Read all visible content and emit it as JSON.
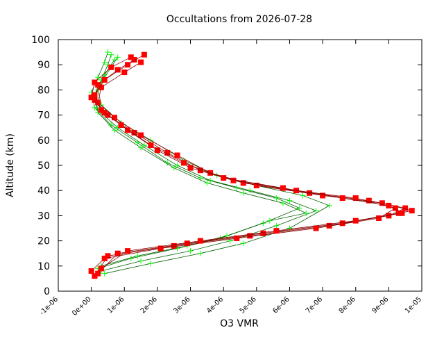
{
  "chart_data": {
    "type": "line",
    "title": "Occultations from 2026-07-28",
    "xlabel": "O3 VMR",
    "ylabel": "Altitude (km)",
    "xlim": [
      -1e-06,
      1e-05
    ],
    "ylim": [
      0,
      100
    ],
    "x_ticks": [
      {
        "value": -1e-06,
        "label": "-1e-06"
      },
      {
        "value": 0,
        "label": "0e+00"
      },
      {
        "value": 1e-06,
        "label": "1e-06"
      },
      {
        "value": 2e-06,
        "label": "2e-06"
      },
      {
        "value": 3e-06,
        "label": "3e-06"
      },
      {
        "value": 4e-06,
        "label": "4e-06"
      },
      {
        "value": 5e-06,
        "label": "5e-06"
      },
      {
        "value": 6e-06,
        "label": "6e-06"
      },
      {
        "value": 7e-06,
        "label": "7e-06"
      },
      {
        "value": 8e-06,
        "label": "8e-06"
      },
      {
        "value": 9e-06,
        "label": "9e-06"
      },
      {
        "value": 1e-05,
        "label": "1e-05"
      }
    ],
    "y_ticks": [
      {
        "value": 0,
        "label": "0"
      },
      {
        "value": 10,
        "label": "10"
      },
      {
        "value": 20,
        "label": "20"
      },
      {
        "value": 30,
        "label": "30"
      },
      {
        "value": 40,
        "label": "40"
      },
      {
        "value": 50,
        "label": "50"
      },
      {
        "value": 60,
        "label": "60"
      },
      {
        "value": 70,
        "label": "70"
      },
      {
        "value": 80,
        "label": "80"
      },
      {
        "value": 90,
        "label": "90"
      },
      {
        "value": 100,
        "label": "100"
      }
    ],
    "grid": false,
    "legend": "none",
    "series": [
      {
        "marker": "plus",
        "color": "#00ff00",
        "line_color": "#006400",
        "profiles": [
          {
            "points": [
              [
                3e-07,
                8
              ],
              [
                1.5e-06,
                12
              ],
              [
                3e-06,
                16
              ],
              [
                4.2e-06,
                20
              ],
              [
                5.6e-06,
                26
              ],
              [
                6.8e-06,
                32
              ],
              [
                6e-06,
                36
              ],
              [
                4.8e-06,
                40
              ],
              [
                3.6e-06,
                44
              ],
              [
                2.6e-06,
                50
              ],
              [
                1.6e-06,
                58
              ],
              [
                8e-07,
                65
              ],
              [
                2e-07,
                72
              ],
              [
                1e-07,
                78
              ],
              [
                3e-07,
                84
              ],
              [
                5e-07,
                90
              ],
              [
                6e-07,
                94
              ]
            ]
          },
          {
            "points": [
              [
                2e-07,
                9
              ],
              [
                1.2e-06,
                13
              ],
              [
                2.6e-06,
                17
              ],
              [
                3.9e-06,
                21
              ],
              [
                5.2e-06,
                27
              ],
              [
                6.3e-06,
                33
              ],
              [
                5.6e-06,
                37
              ],
              [
                4.4e-06,
                41
              ],
              [
                3.3e-06,
                45
              ],
              [
                2.3e-06,
                51
              ],
              [
                1.4e-06,
                59
              ],
              [
                6e-07,
                66
              ],
              [
                1e-07,
                73
              ],
              [
                0.0,
                79
              ],
              [
                2e-07,
                85
              ],
              [
                4e-07,
                91
              ],
              [
                5e-07,
                95
              ]
            ]
          },
          {
            "points": [
              [
                4e-07,
                7
              ],
              [
                1.8e-06,
                11
              ],
              [
                3.3e-06,
                15
              ],
              [
                4.6e-06,
                19
              ],
              [
                6e-06,
                25
              ],
              [
                7.2e-06,
                34
              ],
              [
                6.4e-06,
                38
              ],
              [
                5e-06,
                42
              ],
              [
                3.8e-06,
                46
              ],
              [
                2.8e-06,
                52
              ],
              [
                1.8e-06,
                60
              ],
              [
                9e-07,
                67
              ],
              [
                3e-07,
                74
              ],
              [
                2e-07,
                80
              ],
              [
                4e-07,
                86
              ],
              [
                7e-07,
                92
              ]
            ]
          },
          {
            "points": [
              [
                3e-07,
                10
              ],
              [
                1.4e-06,
                14
              ],
              [
                2.9e-06,
                18
              ],
              [
                4.1e-06,
                22
              ],
              [
                5.4e-06,
                28
              ],
              [
                6.5e-06,
                31
              ],
              [
                5.8e-06,
                35
              ],
              [
                4.6e-06,
                39
              ],
              [
                3.5e-06,
                43
              ],
              [
                2.5e-06,
                49
              ],
              [
                1.5e-06,
                57
              ],
              [
                7e-07,
                64
              ],
              [
                2e-07,
                71
              ],
              [
                1e-07,
                77
              ],
              [
                3e-07,
                83
              ],
              [
                6e-07,
                89
              ],
              [
                8e-07,
                93
              ]
            ]
          }
        ]
      },
      {
        "marker": "square",
        "color": "#ff0000",
        "line_color": "#8b0000",
        "profiles": [
          {
            "points": [
              [
                1e-07,
                6
              ],
              [
                5e-07,
                14
              ],
              [
                2.5e-06,
                18
              ],
              [
                4.8e-06,
                22
              ],
              [
                7.2e-06,
                26
              ],
              [
                9e-06,
                30
              ],
              [
                9.5e-06,
                33
              ],
              [
                8.4e-06,
                36
              ],
              [
                6.6e-06,
                39
              ],
              [
                4.6e-06,
                43
              ],
              [
                3.3e-06,
                48
              ],
              [
                2.3e-06,
                55
              ],
              [
                1.3e-06,
                63
              ],
              [
                5e-07,
                70
              ],
              [
                1e-07,
                76
              ],
              [
                2e-07,
                82
              ],
              [
                8e-07,
                88
              ],
              [
                1.3e-06,
                92
              ]
            ]
          },
          {
            "points": [
              [
                2e-07,
                7
              ],
              [
                8e-07,
                15
              ],
              [
                2.9e-06,
                19
              ],
              [
                5.2e-06,
                23
              ],
              [
                7.6e-06,
                27
              ],
              [
                9.3e-06,
                31
              ],
              [
                9.7e-06,
                32
              ],
              [
                8.8e-06,
                35
              ],
              [
                7e-06,
                38
              ],
              [
                5e-06,
                42
              ],
              [
                3.6e-06,
                47
              ],
              [
                2.6e-06,
                54
              ],
              [
                1.5e-06,
                62
              ],
              [
                7e-07,
                69
              ],
              [
                2e-07,
                75
              ],
              [
                3e-07,
                81
              ],
              [
                1e-06,
                87
              ],
              [
                1.5e-06,
                91
              ]
            ]
          },
          {
            "points": [
              [
                0.0,
                8
              ],
              [
                4e-07,
                13
              ],
              [
                2.1e-06,
                17
              ],
              [
                4.4e-06,
                21
              ],
              [
                6.8e-06,
                25
              ],
              [
                8.7e-06,
                29
              ],
              [
                9.2e-06,
                33
              ],
              [
                8e-06,
                37
              ],
              [
                6.2e-06,
                40
              ],
              [
                4.3e-06,
                44
              ],
              [
                3e-06,
                49
              ],
              [
                2e-06,
                56
              ],
              [
                1.1e-06,
                64
              ],
              [
                4e-07,
                71
              ],
              [
                0.0,
                77
              ],
              [
                1e-07,
                83
              ],
              [
                6e-07,
                89
              ],
              [
                1.2e-06,
                93
              ]
            ]
          },
          {
            "points": [
              [
                3e-07,
                9
              ],
              [
                1.1e-06,
                16
              ],
              [
                3.3e-06,
                20
              ],
              [
                5.6e-06,
                24
              ],
              [
                8e-06,
                28
              ],
              [
                9.4e-06,
                31
              ],
              [
                9e-06,
                34
              ],
              [
                7.6e-06,
                37
              ],
              [
                5.8e-06,
                41
              ],
              [
                4e-06,
                45
              ],
              [
                2.8e-06,
                51
              ],
              [
                1.8e-06,
                58
              ],
              [
                9e-07,
                66
              ],
              [
                3e-07,
                72
              ],
              [
                1e-07,
                78
              ],
              [
                4e-07,
                84
              ],
              [
                1.1e-06,
                90
              ],
              [
                1.6e-06,
                94
              ]
            ]
          }
        ]
      }
    ]
  }
}
